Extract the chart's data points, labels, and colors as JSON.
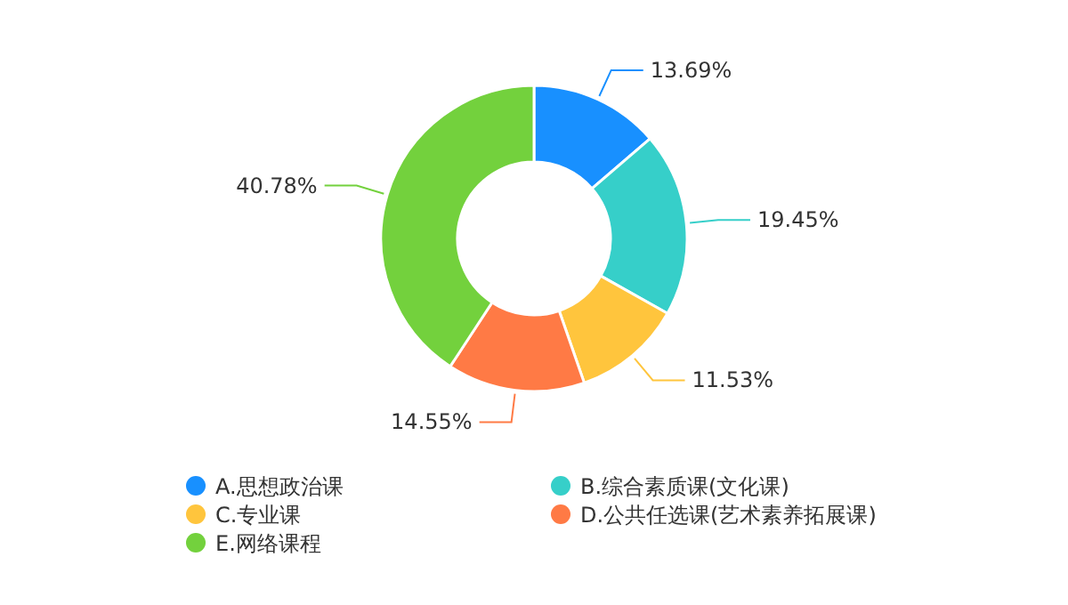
{
  "chart_data": {
    "type": "donut",
    "categories": [
      "A.思想政治课",
      "B.综合素质课(文化课)",
      "C.专业课",
      "D.公共任选课(艺术素养拓展课)",
      "E.网络课程"
    ],
    "values": [
      13.69,
      19.45,
      11.53,
      14.55,
      40.78
    ],
    "colors": [
      "#1890ff",
      "#36cfc9",
      "#ffc53d",
      "#ff7a45",
      "#73d13d"
    ],
    "value_labels": [
      "13.69%",
      "19.45%",
      "11.53%",
      "14.55%",
      "40.78%"
    ],
    "legend": "bottom"
  }
}
